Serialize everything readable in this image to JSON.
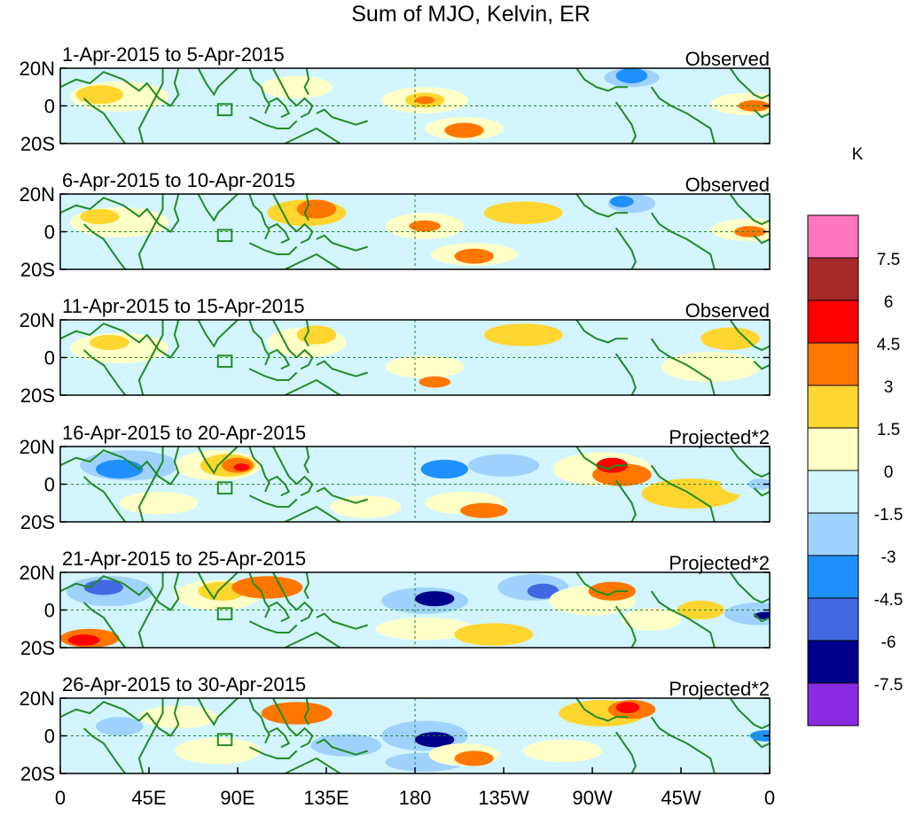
{
  "title": "Sum of MJO, Kelvin, ER",
  "unit": "K",
  "lat_labels": [
    "20N",
    "0",
    "20S"
  ],
  "lon_labels": [
    "0",
    "45E",
    "90E",
    "135E",
    "180",
    "135W",
    "90W",
    "45W",
    "0"
  ],
  "panels": [
    {
      "date_range": "1-Apr-2015 to 5-Apr-2015",
      "type": "Observed"
    },
    {
      "date_range": "6-Apr-2015 to 10-Apr-2015",
      "type": "Observed"
    },
    {
      "date_range": "11-Apr-2015 to 15-Apr-2015",
      "type": "Observed"
    },
    {
      "date_range": "16-Apr-2015 to 20-Apr-2015",
      "type": "Projected*2"
    },
    {
      "date_range": "21-Apr-2015 to 25-Apr-2015",
      "type": "Projected*2"
    },
    {
      "date_range": "26-Apr-2015 to 30-Apr-2015",
      "type": "Projected*2"
    }
  ],
  "colorbar": {
    "labels": [
      "7.5",
      "6",
      "4.5",
      "3",
      "1.5",
      "0",
      "-1.5",
      "-3",
      "-4.5",
      "-6",
      "-7.5"
    ],
    "colors": [
      "#ff77c0",
      "#a52a2a",
      "#ff0000",
      "#ff7700",
      "#ffd530",
      "#ffffc8",
      "#d2f5ff",
      "#a0d2ff",
      "#1e90ff",
      "#4169e1",
      "#00008b",
      "#8a2be2"
    ]
  },
  "palette": {
    "pos1": "#ffffc8",
    "pos2": "#ffd530",
    "pos3": "#ff7700",
    "pos4": "#ff0000",
    "pos5": "#a52a2a",
    "neg1": "#d2f5ff",
    "neg2": "#a0d2ff",
    "neg3": "#1e90ff",
    "neg4": "#4169e1",
    "neg5": "#00008b",
    "coast": "#228b22"
  }
}
